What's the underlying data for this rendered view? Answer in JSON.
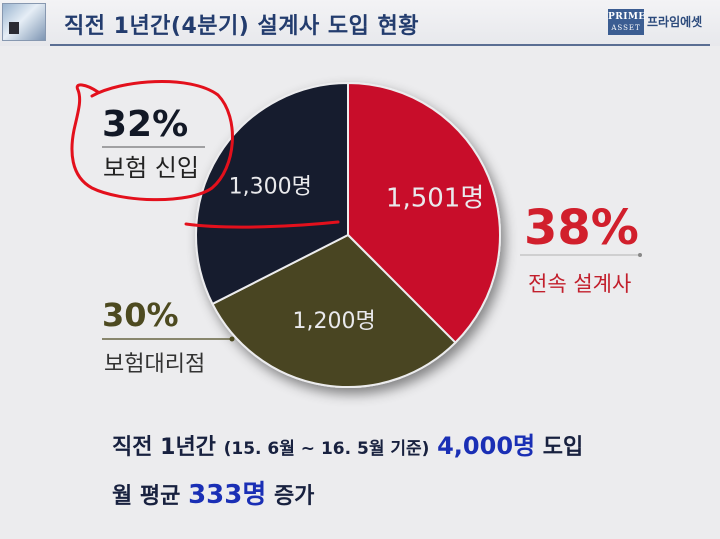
{
  "header": {
    "title": "직전 1년간(4분기) 설계사 도입 현황",
    "brand_logo_line1": "PRIME",
    "brand_logo_line2": "ASSET",
    "brand_name": "프라임에셋"
  },
  "chart_data": {
    "type": "pie",
    "title": "직전 1년간(4분기) 설계사 도입 현황",
    "slices": [
      {
        "label": "전속 설계사",
        "value": 1501,
        "value_label": "1,501명",
        "percent_label": "38%",
        "color": "#c8102a"
      },
      {
        "label": "보험대리점",
        "value": 1200,
        "value_label": "1,200명",
        "percent_label": "30%",
        "color": "#4a4520"
      },
      {
        "label": "보험 신입",
        "value": 1300,
        "value_label": "1,300명",
        "percent_label": "32%",
        "color": "#151b2e"
      }
    ],
    "total": 4000
  },
  "summary": {
    "line1_prefix": "직전 1년간",
    "line1_period": "(15. 6월 ~ 16. 5월 기준)",
    "line1_total": "4,000명",
    "line1_suffix": "도입",
    "line2_prefix": "월 평균",
    "line2_value": "333명",
    "line2_suffix": "증가"
  },
  "annotation": {
    "stroke_color": "#e3101c"
  }
}
